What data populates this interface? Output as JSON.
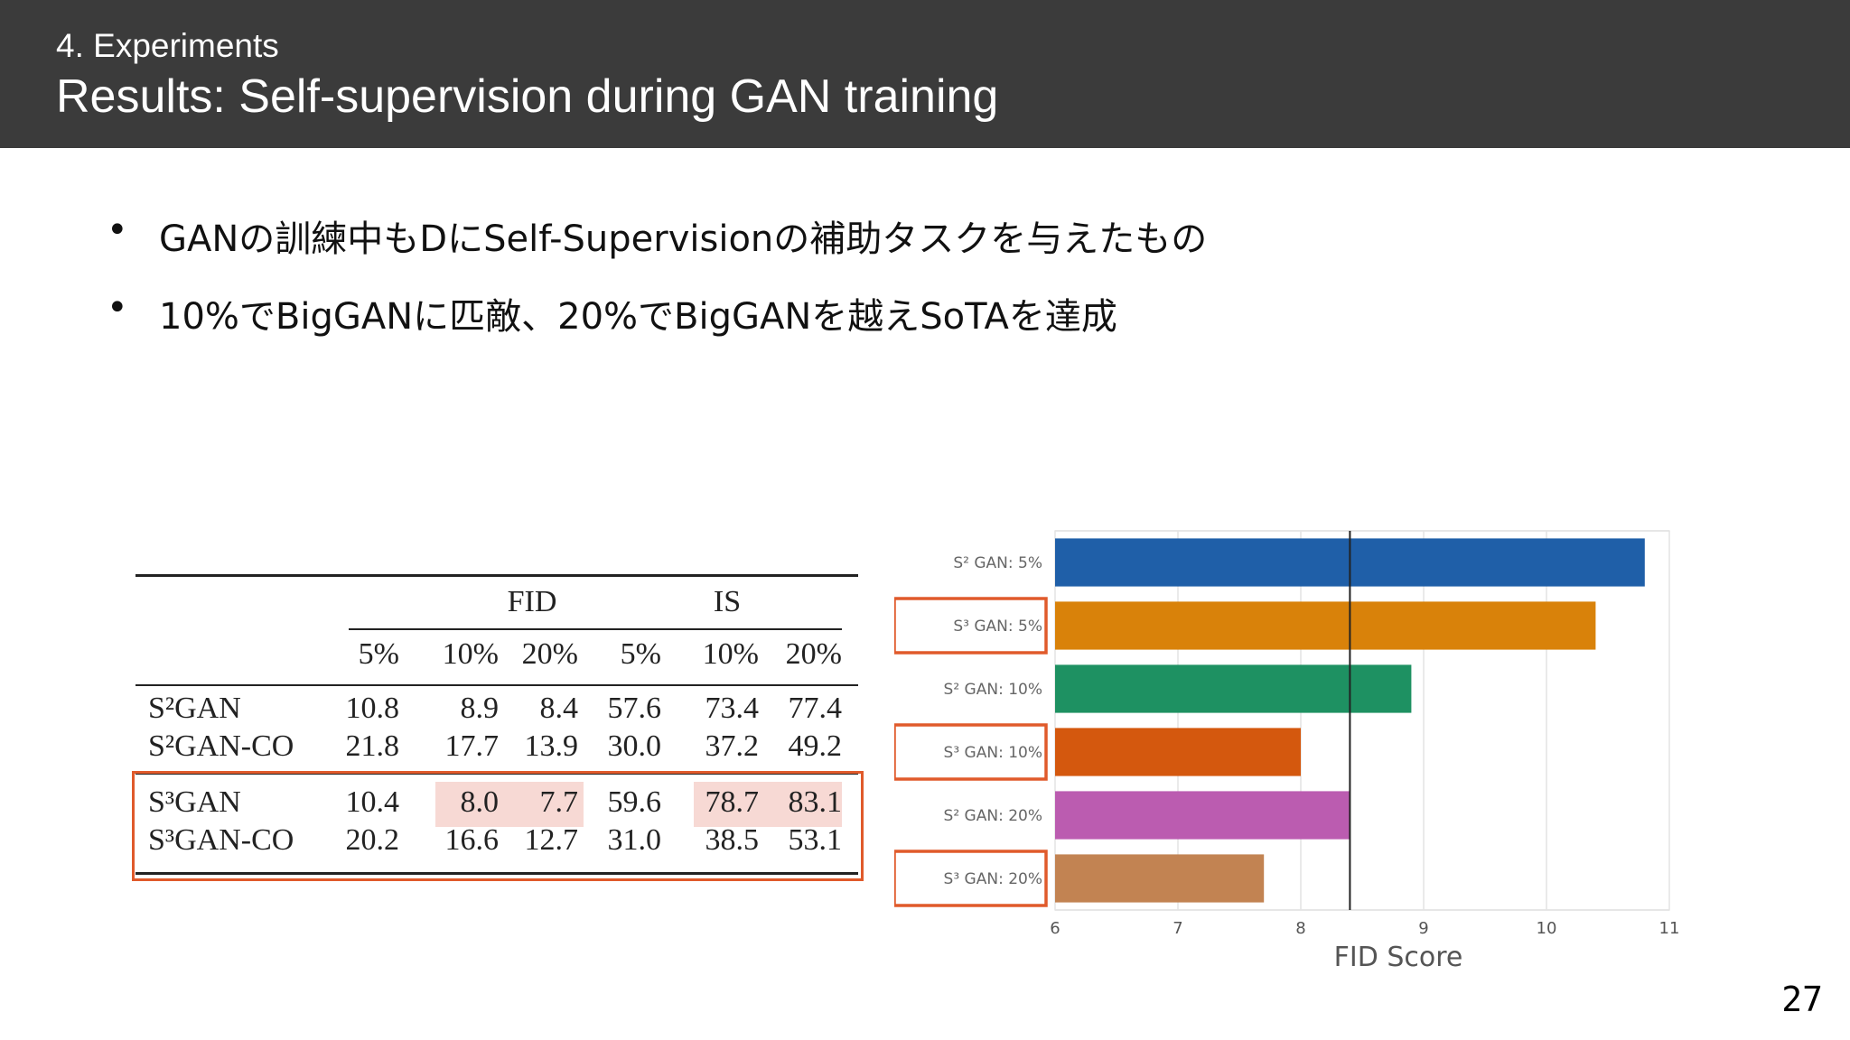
{
  "header": {
    "section": "4. Experiments",
    "title": "Results: Self-supervision during GAN training"
  },
  "bullets": [
    "GANの訓練中もDにSelf-Supervisionの補助タスクを与えたもの",
    "10%でBigGANに匹敵、20%でBigGANを越えSoTAを達成"
  ],
  "bullet_marker": "•",
  "table": {
    "groups": [
      "FID",
      "IS"
    ],
    "columns": [
      "5%",
      "10%",
      "20%",
      "5%",
      "10%",
      "20%"
    ],
    "rows": [
      {
        "label": "S²GAN",
        "values": [
          "10.8",
          "8.9",
          "8.4",
          "57.6",
          "73.4",
          "77.4"
        ]
      },
      {
        "label": "S²GAN-CO",
        "values": [
          "21.8",
          "17.7",
          "13.9",
          "30.0",
          "37.2",
          "49.2"
        ]
      },
      {
        "label": "S³GAN",
        "values": [
          "10.4",
          "8.0",
          "7.7",
          "59.6",
          "78.7",
          "83.1"
        ]
      },
      {
        "label": "S³GAN-CO",
        "values": [
          "20.2",
          "16.6",
          "12.7",
          "31.0",
          "38.5",
          "53.1"
        ]
      }
    ],
    "highlight_color": "#f7d9d4",
    "box_color": "#e05a2b"
  },
  "chart_data": {
    "type": "bar",
    "orientation": "horizontal",
    "categories": [
      "S² GAN: 5%",
      "S³ GAN: 5%",
      "S² GAN: 10%",
      "S³ GAN: 10%",
      "S² GAN: 20%",
      "S³ GAN: 20%"
    ],
    "values": [
      10.8,
      10.4,
      8.9,
      8.0,
      8.4,
      7.7
    ],
    "colors": [
      "#1f5fa8",
      "#d9820a",
      "#1e9162",
      "#d4580e",
      "#bb5cb0",
      "#c28352"
    ],
    "xlabel": "FID Score",
    "xlim": [
      6,
      11
    ],
    "xticks": [
      "6",
      "7",
      "8",
      "9",
      "10",
      "11"
    ],
    "reference_line": 8.4,
    "boxed_categories": [
      1,
      3,
      5
    ],
    "grid": true
  },
  "page_number": "27"
}
